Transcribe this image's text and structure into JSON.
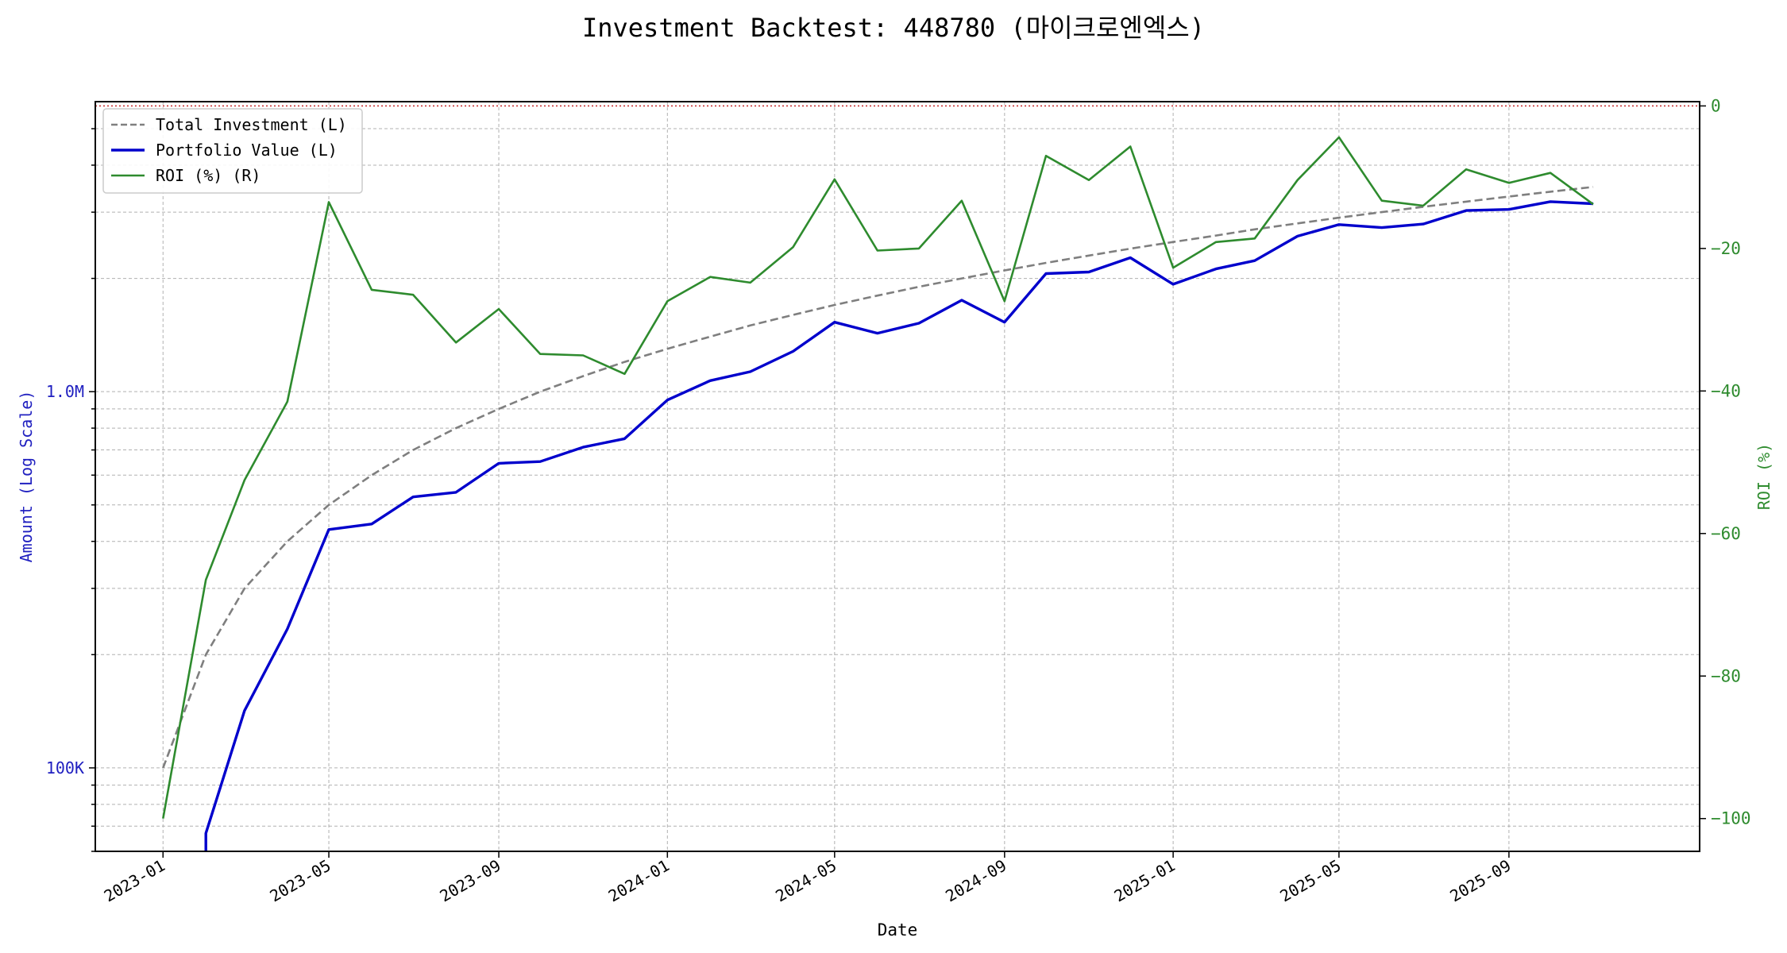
{
  "chart_data": {
    "type": "line",
    "title": "Investment Backtest: 448780 (마이크로엔엑스)",
    "xlabel": "Date",
    "ylabel_left": "Amount (Log Scale)",
    "ylabel_right": "ROI (%)",
    "left_axis": {
      "scale": "log",
      "range": [
        60000,
        5900000
      ],
      "ticks": [
        100000,
        1000000
      ],
      "tick_labels": [
        "100K",
        "1.0M"
      ]
    },
    "right_axis": {
      "scale": "linear",
      "range": [
        -104.6,
        0.6
      ],
      "ticks": [
        0,
        -20,
        -40,
        -60,
        -80,
        -100
      ],
      "tick_labels": [
        "0",
        "−20",
        "−40",
        "−60",
        "−80",
        "−100"
      ]
    },
    "x_range": [
      "2022-11-13",
      "2026-01-17"
    ],
    "x_ticks": [
      "2023-01",
      "2023-05",
      "2023-09",
      "2024-01",
      "2024-05",
      "2024-09",
      "2025-01",
      "2025-05",
      "2025-09"
    ],
    "grid": true,
    "reference_line": {
      "axis": "right",
      "value": 0,
      "style": "dotted",
      "color": "#c62828"
    },
    "legend": {
      "placement": "top-left",
      "entries": [
        "Total Investment (L)",
        "Portfolio Value (L)",
        "ROI (%) (R)"
      ]
    },
    "x": [
      "2023-01",
      "2023-02",
      "2023-03",
      "2023-04",
      "2023-05",
      "2023-06",
      "2023-07",
      "2023-08",
      "2023-09",
      "2023-10",
      "2023-11",
      "2023-12",
      "2024-01",
      "2024-02",
      "2024-03",
      "2024-04",
      "2024-05",
      "2024-06",
      "2024-07",
      "2024-08",
      "2024-09",
      "2024-10",
      "2024-11",
      "2024-12",
      "2025-01",
      "2025-02",
      "2025-03",
      "2025-04",
      "2025-05",
      "2025-06",
      "2025-07",
      "2025-08",
      "2025-09",
      "2025-10",
      "2025-11"
    ],
    "series": [
      {
        "name": "Total Investment (L)",
        "axis": "left",
        "color": "#7f7f7f",
        "style": "dashed",
        "values": [
          100000,
          200000,
          300000,
          400000,
          500000,
          600000,
          700000,
          800000,
          900000,
          1000000,
          1100000,
          1200000,
          1300000,
          1400000,
          1500000,
          1600000,
          1700000,
          1800000,
          1900000,
          2000000,
          2100000,
          2200000,
          2300000,
          2400000,
          2500000,
          2600000,
          2700000,
          2800000,
          2900000,
          3000000,
          3100000,
          3200000,
          3300000,
          3400000,
          3500000
        ]
      },
      {
        "name": "Portfolio Value (L)",
        "axis": "left",
        "color": "#0000cc",
        "style": "solid",
        "values": [
          null,
          67000,
          142000,
          234000,
          430000,
          445000,
          525000,
          540000,
          645000,
          652000,
          712000,
          750000,
          950000,
          1070000,
          1130000,
          1280000,
          1530000,
          1430000,
          1520000,
          1750000,
          1530000,
          2060000,
          2080000,
          2270000,
          1930000,
          2120000,
          2230000,
          2590000,
          2780000,
          2730000,
          2790000,
          3030000,
          3050000,
          3200000,
          3160000
        ]
      },
      {
        "name": "ROI (%) (R)",
        "axis": "right",
        "color": "#2e8b2e",
        "style": "solid",
        "values": [
          -100,
          -66.5,
          -52.5,
          -41.5,
          -13.5,
          -25.8,
          -26.5,
          -33.2,
          -28.5,
          -34.8,
          -35.0,
          -37.6,
          -27.4,
          -24.0,
          -24.8,
          -19.8,
          -10.3,
          -20.3,
          -20.0,
          -13.3,
          -27.4,
          -7.0,
          -10.4,
          -5.7,
          -22.7,
          -19.1,
          -18.6,
          -10.4,
          -4.4,
          -13.3,
          -14.0,
          -8.9,
          -10.8,
          -9.4,
          -13.8
        ]
      }
    ]
  }
}
